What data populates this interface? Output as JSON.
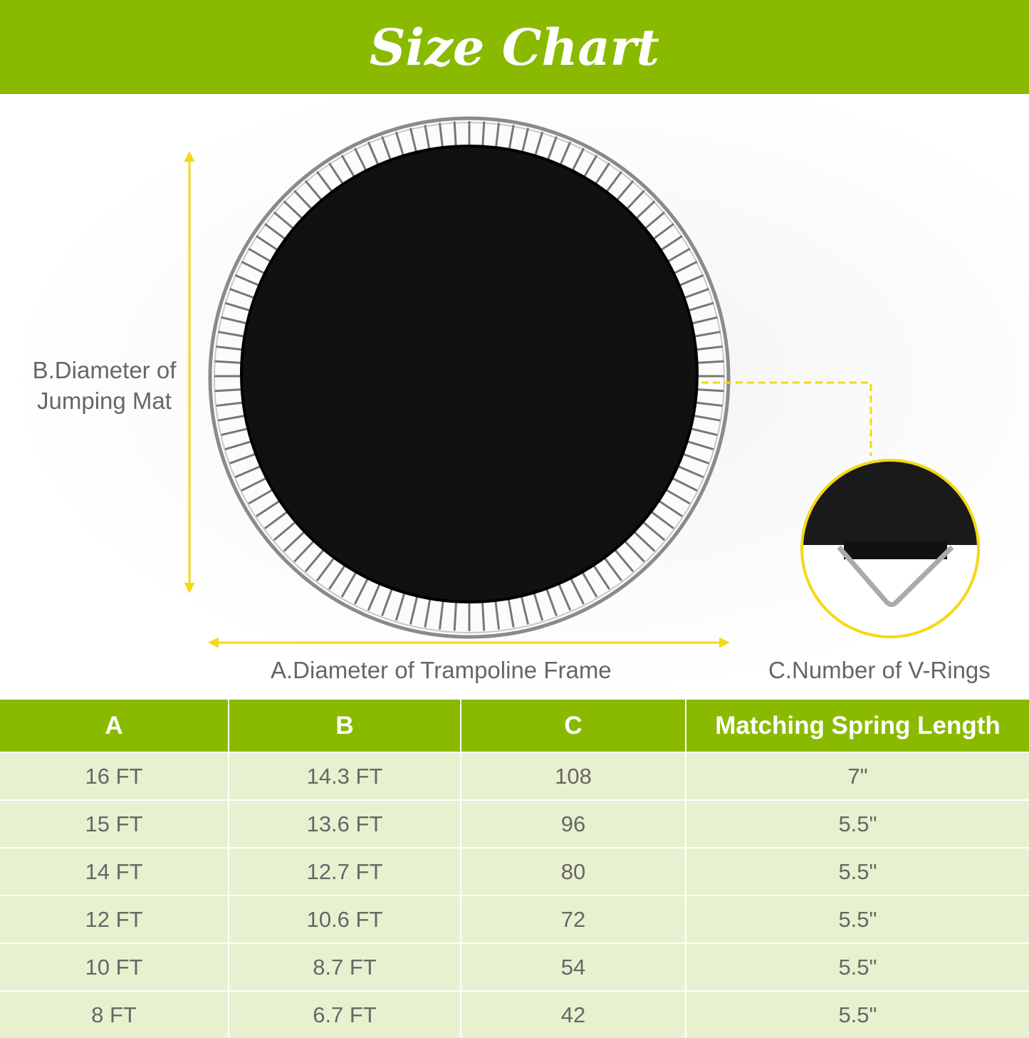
{
  "title": "Size Chart",
  "labels": {
    "a": "A.Diameter of Trampoline Frame",
    "b_line1": "B.Diameter of",
    "b_line2": "Jumping Mat",
    "c": "C.Number of V-Rings"
  },
  "colors": {
    "brand_green": "#8aba00",
    "row_bg": "#e8f1cf",
    "accent_yellow": "#f5d816"
  },
  "table": {
    "headers": [
      "A",
      "B",
      "C",
      "Matching Spring Length"
    ],
    "rows": [
      [
        "16 FT",
        "14.3 FT",
        "108",
        "7\""
      ],
      [
        "15 FT",
        "13.6 FT",
        "96",
        "5.5\""
      ],
      [
        "14 FT",
        "12.7 FT",
        "80",
        "5.5\""
      ],
      [
        "12 FT",
        "10.6 FT",
        "72",
        "5.5\""
      ],
      [
        "10 FT",
        "8.7 FT",
        "54",
        "5.5\""
      ],
      [
        "8 FT",
        "6.7 FT",
        "42",
        "5.5\""
      ]
    ]
  }
}
